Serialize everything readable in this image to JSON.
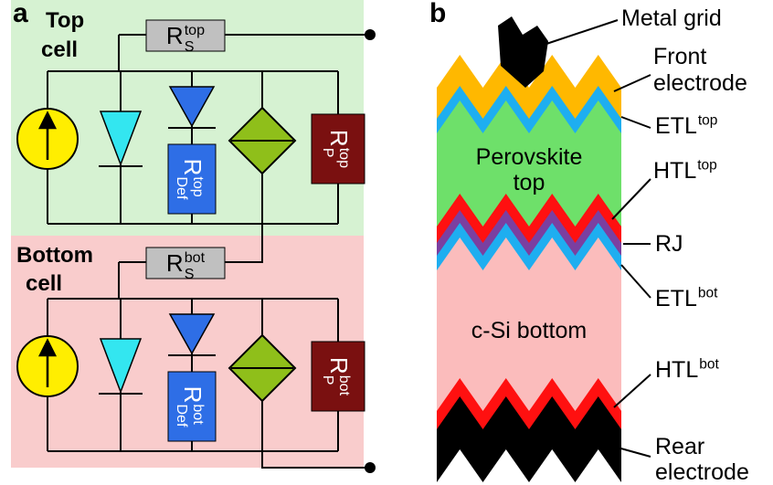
{
  "panel_a": {
    "label": "a",
    "top_cell": {
      "title": [
        "Top",
        "cell"
      ],
      "rs": {
        "base": "R",
        "sub": "S",
        "sup": "top"
      },
      "rdef": {
        "base": "R",
        "sub": "Def",
        "sup": "top"
      },
      "rp": {
        "base": "R",
        "sub": "P",
        "sup": "top"
      }
    },
    "bottom_cell": {
      "title": [
        "Bottom",
        "cell"
      ],
      "rs": {
        "base": "R",
        "sub": "S",
        "sup": "bot"
      },
      "rdef": {
        "base": "R",
        "sub": "Def",
        "sup": "bot"
      },
      "rp": {
        "base": "R",
        "sub": "P",
        "sup": "bot"
      }
    }
  },
  "panel_b": {
    "label": "b",
    "in_layer": [
      [
        "Perovskite",
        "top"
      ],
      [
        "c-Si bottom"
      ]
    ],
    "labels": [
      {
        "lines": [
          "Metal grid"
        ]
      },
      {
        "lines": [
          "Front",
          "electrode"
        ]
      },
      {
        "base": "ETL",
        "sup": "top"
      },
      {
        "base": "HTL",
        "sup": "top"
      },
      {
        "lines": [
          "RJ"
        ]
      },
      {
        "base": "ETL",
        "sup": "bot"
      },
      {
        "base": "HTL",
        "sup": "bot"
      },
      {
        "lines": [
          "Rear",
          "electrode"
        ]
      }
    ]
  }
}
